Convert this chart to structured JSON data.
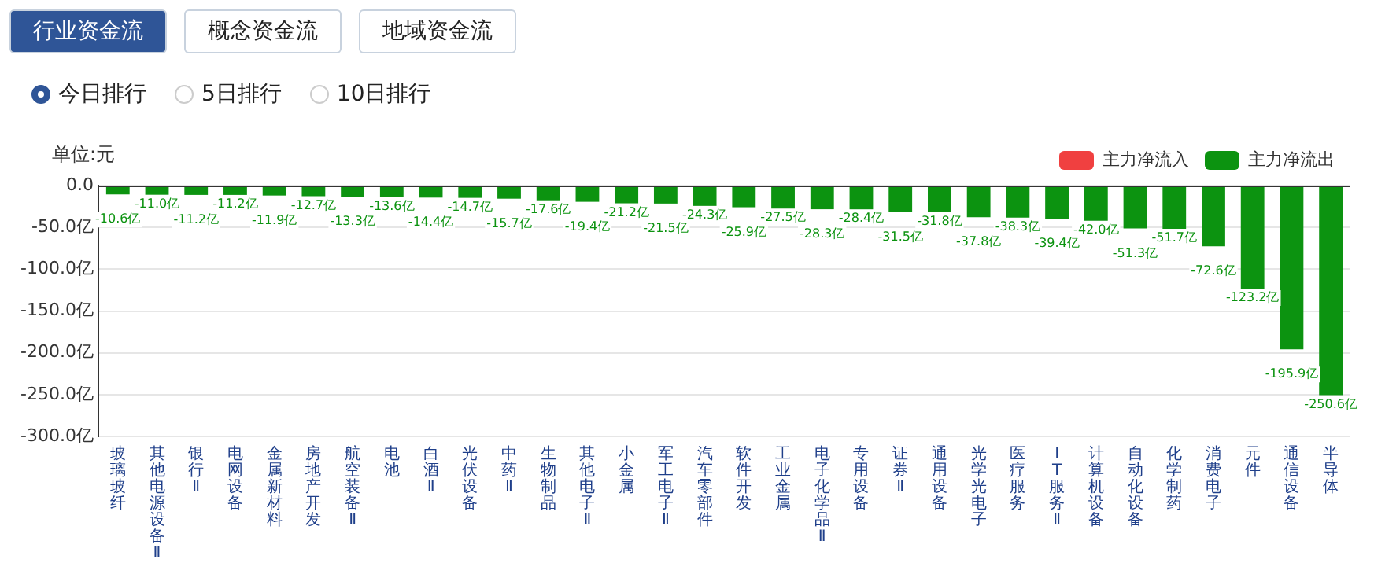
{
  "chart_data": {
    "type": "bar",
    "annotations": [
      "行业资金流",
      "概念资金流",
      "地域资金流",
      "今日排行",
      "5日排行",
      "10日排行"
    ],
    "ylabel": "单位:元",
    "categories": [
      "玻璃玻纤",
      "其他电源设备Ⅱ",
      "银行Ⅱ",
      "电网设备",
      "金属新材料",
      "房地产开发",
      "航空装备Ⅱ",
      "电池",
      "白酒Ⅱ",
      "光伏设备",
      "中药Ⅱ",
      "生物制品",
      "其他电子Ⅱ",
      "小金属",
      "军工电子Ⅱ",
      "汽车零部件",
      "软件开发",
      "工业金属",
      "电子化学品Ⅱ",
      "专用设备",
      "证券Ⅱ",
      "通用设备",
      "光学光电子",
      "医疗服务",
      "IT服务Ⅱ",
      "计算机设备",
      "自动化设备",
      "化学制药",
      "消费电子",
      "元件",
      "通信设备",
      "半导体"
    ],
    "series": [
      {
        "name": "主力净流入",
        "color": "#f04040",
        "values": [
          null,
          null,
          null,
          null,
          null,
          null,
          null,
          null,
          null,
          null,
          null,
          null,
          null,
          null,
          null,
          null,
          null,
          null,
          null,
          null,
          null,
          null,
          null,
          null,
          null,
          null,
          null,
          null,
          null,
          null,
          null,
          null
        ]
      },
      {
        "name": "主力净流出",
        "color": "#0c9310",
        "values": [
          -10.6,
          -11.0,
          -11.2,
          -11.2,
          -11.9,
          -12.7,
          -13.3,
          -13.6,
          -14.4,
          -14.7,
          -15.7,
          -17.6,
          -19.4,
          -21.2,
          -21.5,
          -24.3,
          -25.9,
          -27.5,
          -28.3,
          -28.4,
          -31.5,
          -31.8,
          -37.8,
          -38.3,
          -39.4,
          -42.0,
          -51.3,
          -51.7,
          -72.6,
          -123.2,
          -195.9,
          -250.6
        ],
        "value_labels": [
          "-10.6亿",
          "-11.0亿",
          "-11.2亿",
          "-11.2亿",
          "-11.9亿",
          "-12.7亿",
          "-13.3亿",
          "-13.6亿",
          "-14.4亿",
          "-14.7亿",
          "-15.7亿",
          "-17.6亿",
          "-19.4亿",
          "-21.2亿",
          "-21.5亿",
          "-24.3亿",
          "-25.9亿",
          "-27.5亿",
          "-28.3亿",
          "-28.4亿",
          "-31.5亿",
          "-31.8亿",
          "-37.8亿",
          "-38.3亿",
          "-39.4亿",
          "-42.0亿",
          "-51.3亿",
          "-51.7亿",
          "-72.6亿",
          "-123.2亿",
          "-195.9亿",
          "-250.6亿"
        ]
      }
    ],
    "ylim": [
      -300,
      0
    ],
    "yticks": [
      {
        "value": 0,
        "label": "0.0"
      },
      {
        "value": -50,
        "label": "-50.0亿"
      },
      {
        "value": -100,
        "label": "-100.0亿"
      },
      {
        "value": -150,
        "label": "-150.0亿"
      },
      {
        "value": -200,
        "label": "-200.0亿"
      },
      {
        "value": -250,
        "label": "-250.0亿"
      },
      {
        "value": -300,
        "label": "-300.0亿"
      }
    ],
    "grid": "y",
    "legend": "top right"
  }
}
